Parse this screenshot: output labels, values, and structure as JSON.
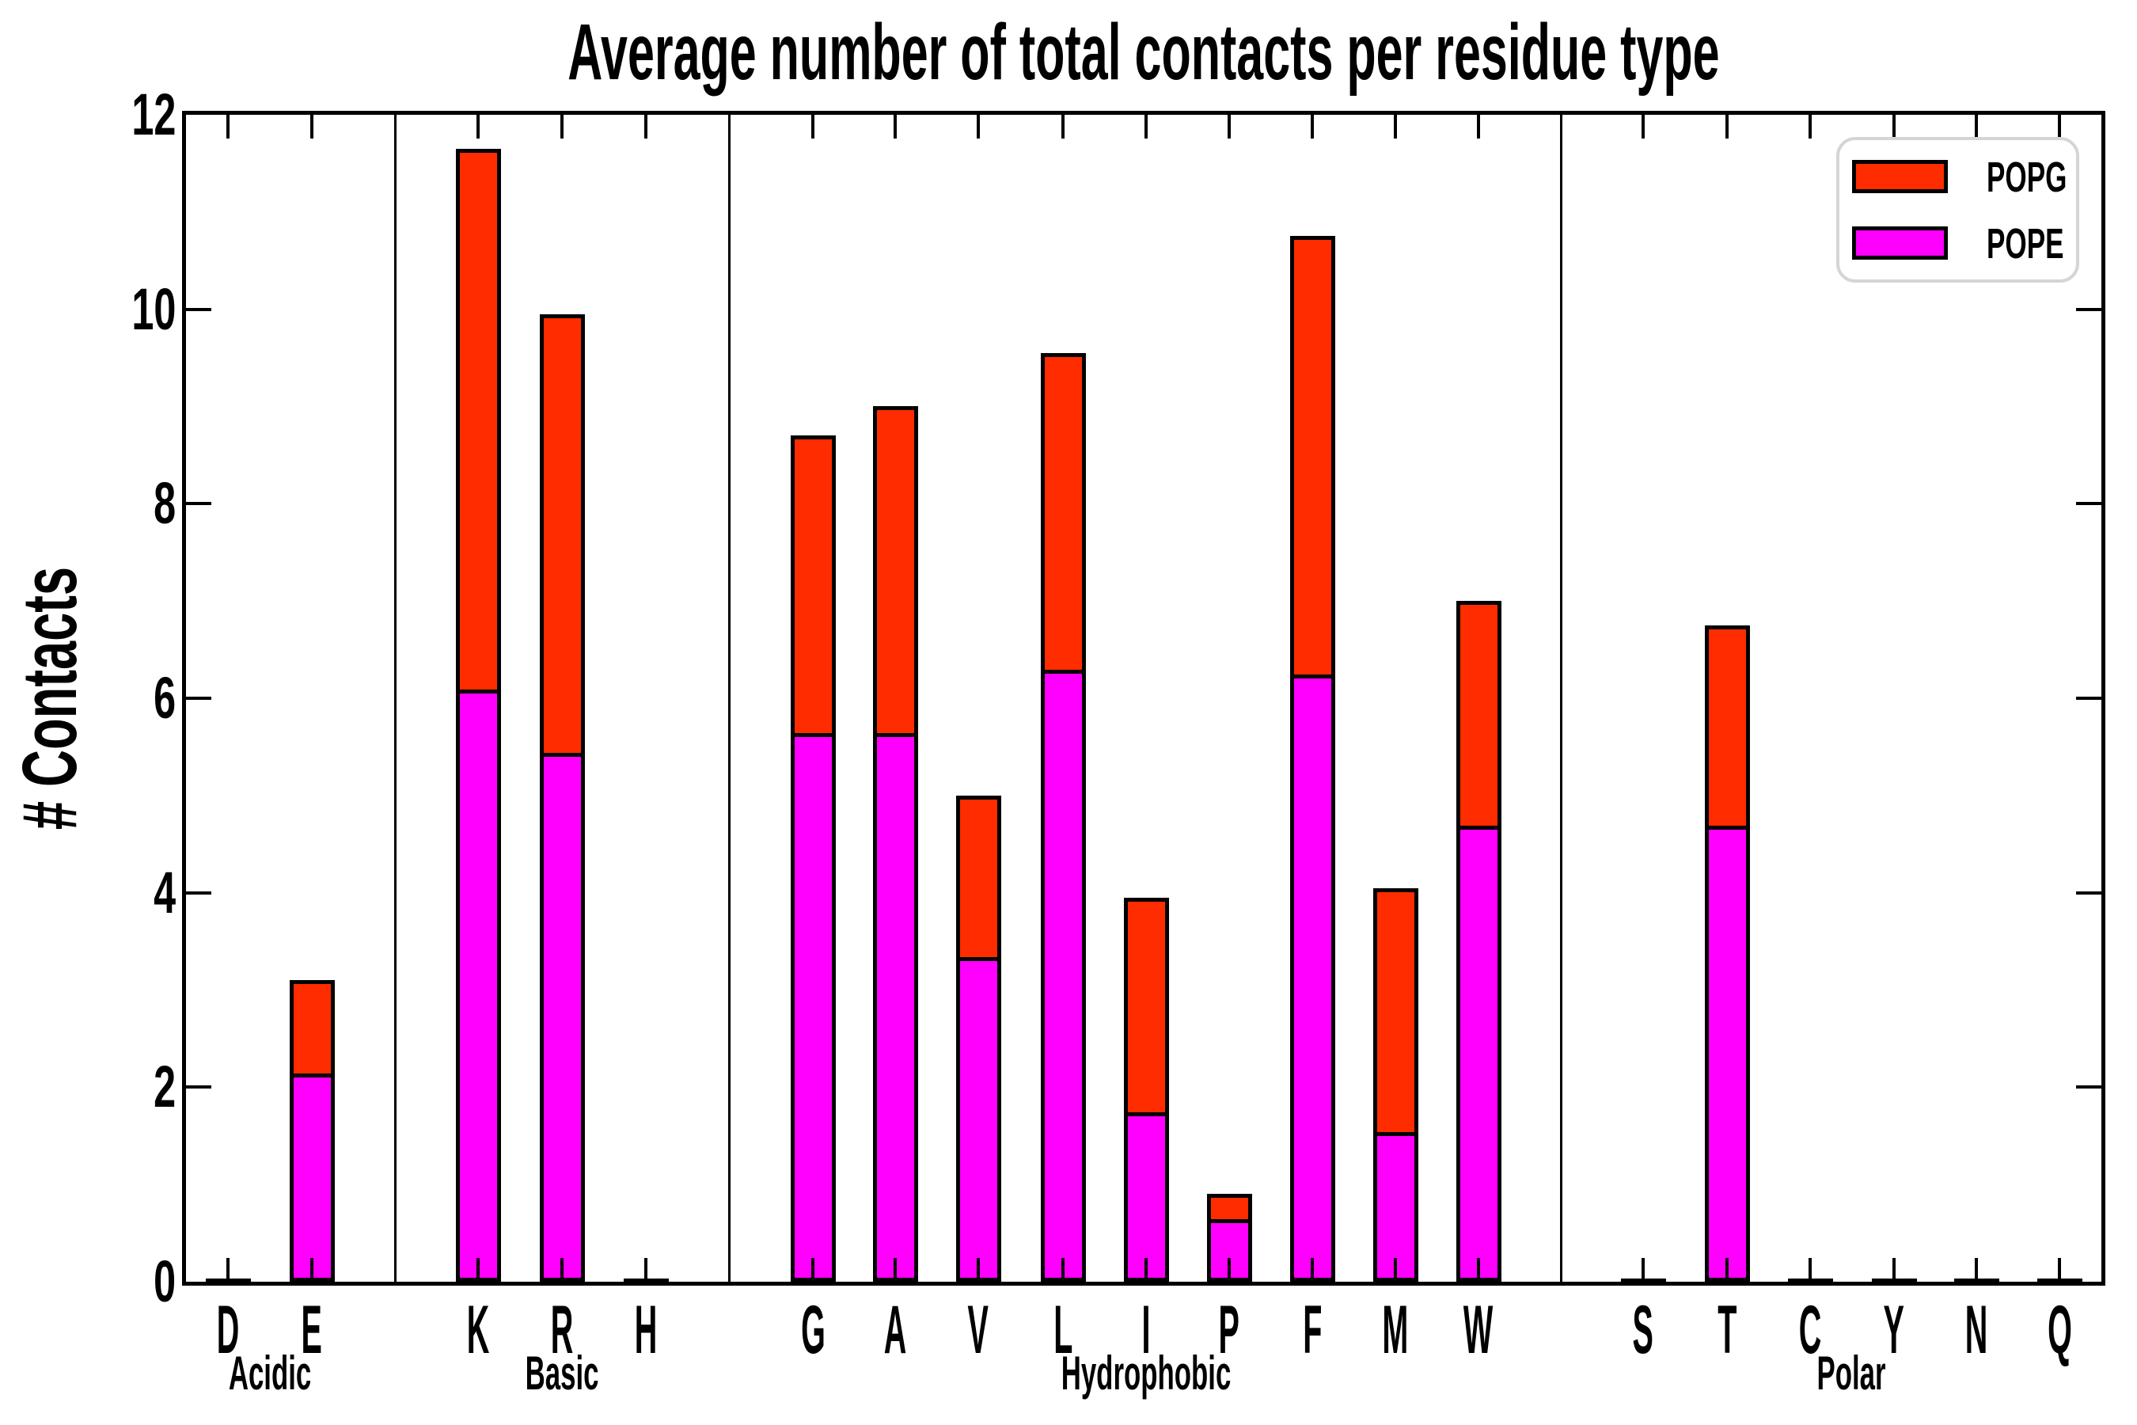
{
  "title": "Average number of total contacts per residue type",
  "y_axis": {
    "label": "# Contacts",
    "tick_labels": [
      "0",
      "2",
      "4",
      "6",
      "8",
      "10",
      "12"
    ]
  },
  "legend": {
    "items": [
      {
        "label": "POPG",
        "color": "#ff2c00"
      },
      {
        "label": "POPE",
        "color": "#ff00ff"
      }
    ]
  },
  "chart_data": {
    "type": "bar",
    "stacked": true,
    "title": "Average number of total contacts per residue type",
    "xlabel": "",
    "ylabel": "# Contacts",
    "ylim": [
      0,
      12
    ],
    "yticks": [
      0,
      2,
      4,
      6,
      8,
      10,
      12
    ],
    "grid": false,
    "legend_position": "upper right",
    "categories": [
      "D",
      "E",
      "K",
      "R",
      "H",
      "G",
      "A",
      "V",
      "L",
      "I",
      "P",
      "F",
      "M",
      "W",
      "S",
      "T",
      "C",
      "Y",
      "N",
      "Q"
    ],
    "category_groups": [
      {
        "label": "Acidic",
        "categories": [
          "D",
          "E"
        ]
      },
      {
        "label": "Basic",
        "categories": [
          "K",
          "R",
          "H"
        ]
      },
      {
        "label": "Hydrophobic",
        "categories": [
          "G",
          "A",
          "V",
          "L",
          "I",
          "P",
          "F",
          "M",
          "W"
        ]
      },
      {
        "label": "Polar",
        "categories": [
          "S",
          "T",
          "C",
          "Y",
          "N",
          "Q"
        ]
      }
    ],
    "series": [
      {
        "name": "POPE",
        "color": "#ff00ff",
        "values": [
          0,
          2.1,
          6.05,
          5.4,
          0,
          5.6,
          5.6,
          3.3,
          6.25,
          1.7,
          0.6,
          6.2,
          1.5,
          4.65,
          0,
          4.65,
          0,
          0,
          0,
          0
        ]
      },
      {
        "name": "POPG",
        "color": "#ff2c00",
        "values": [
          0,
          1.0,
          5.6,
          4.55,
          0,
          3.1,
          3.4,
          1.7,
          3.3,
          2.25,
          0.3,
          4.55,
          2.55,
          2.35,
          0,
          2.1,
          0,
          0,
          0,
          0
        ]
      }
    ],
    "totals": [
      0,
      3.1,
      11.65,
      9.95,
      0,
      8.7,
      9.0,
      5.0,
      9.55,
      3.95,
      0.9,
      10.75,
      4.05,
      7.0,
      0,
      6.75,
      0,
      0,
      0,
      0
    ]
  }
}
